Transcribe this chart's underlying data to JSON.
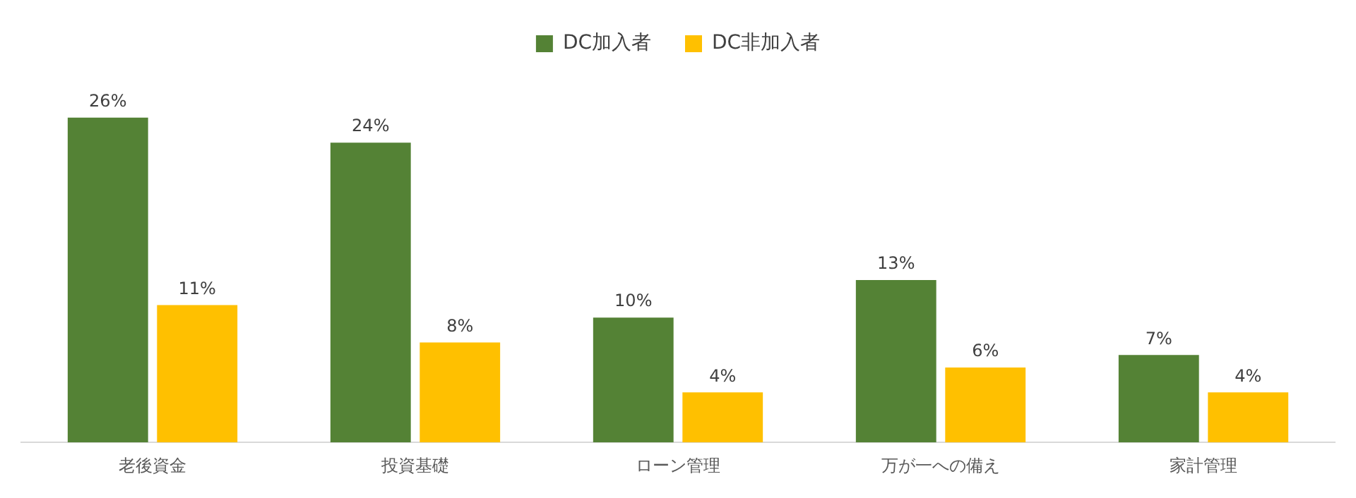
{
  "chart_data": {
    "type": "bar",
    "categories": [
      "老後資金",
      "投資基礎",
      "ローン管理",
      "万が一への備え",
      "家計管理"
    ],
    "series": [
      {
        "name": "DC加入者",
        "color": "#548235",
        "values": [
          26,
          24,
          10,
          13,
          7
        ],
        "value_labels": [
          "26%",
          "24%",
          "10%",
          "13%",
          "7%"
        ]
      },
      {
        "name": "DC非加入者",
        "color": "#ffc000",
        "values": [
          11,
          8,
          4,
          6,
          4
        ],
        "value_labels": [
          "11%",
          "8%",
          "4%",
          "6%",
          "4%"
        ]
      }
    ],
    "legend": "top",
    "grid": false,
    "tick_labels": "x"
  }
}
